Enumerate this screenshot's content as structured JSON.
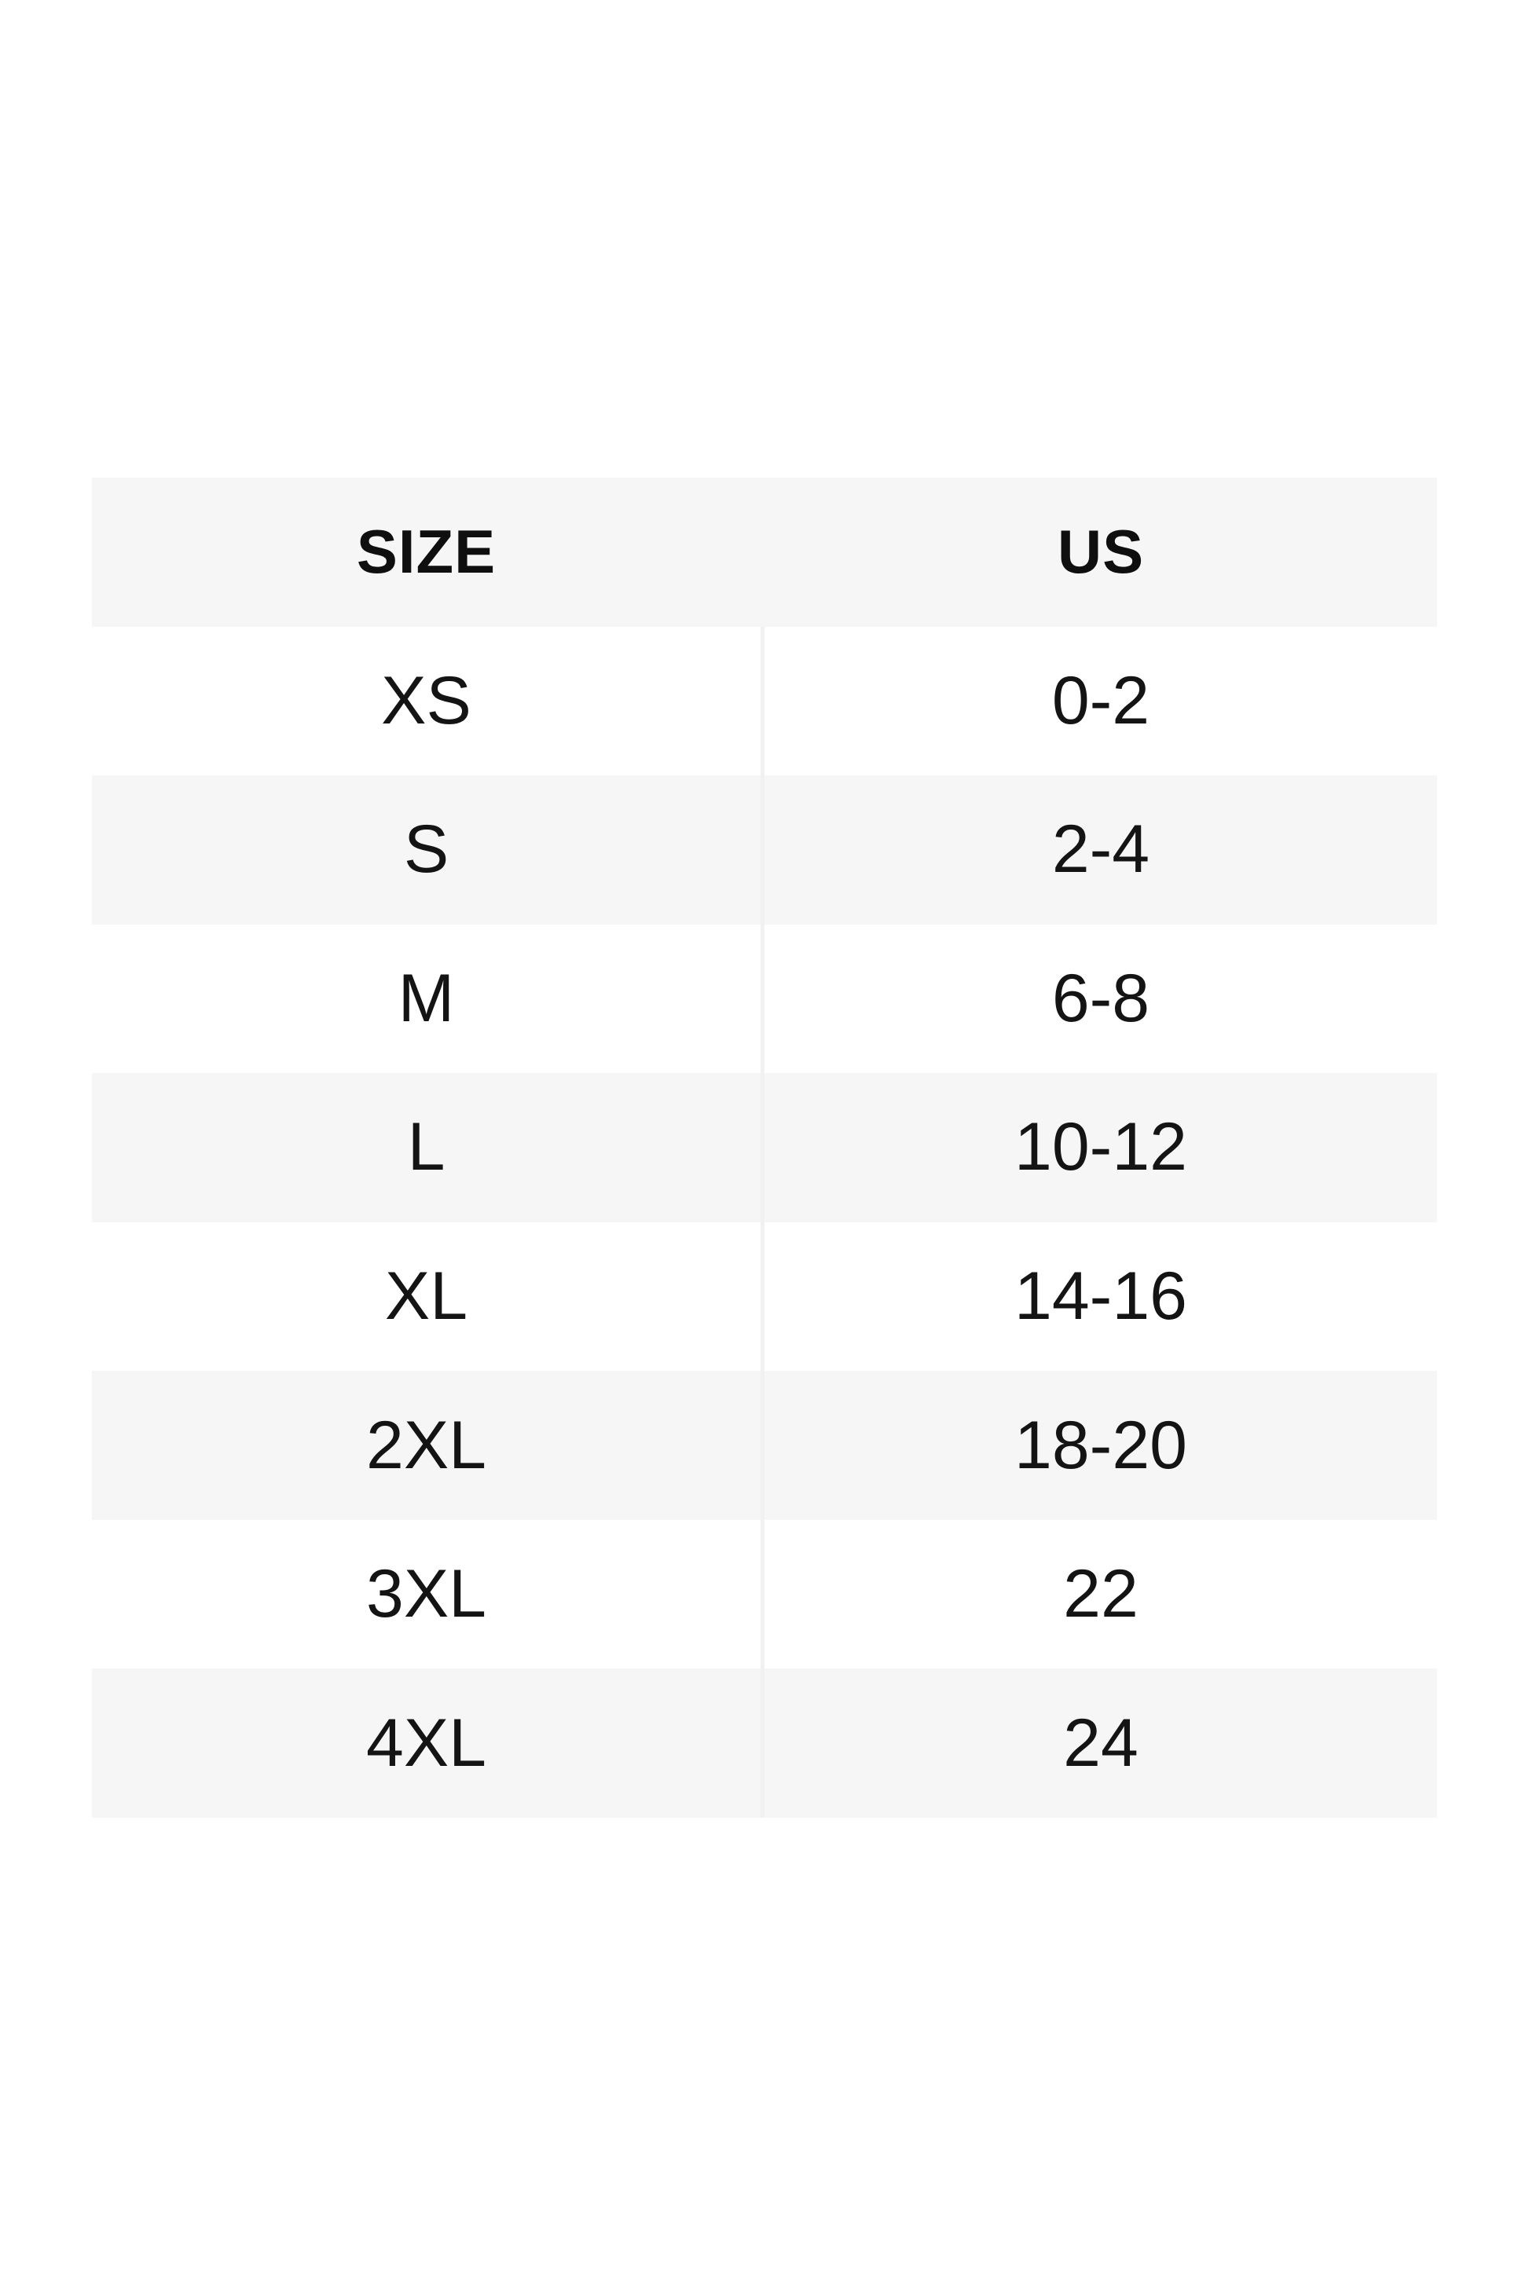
{
  "table": {
    "headers": [
      "SIZE",
      "US"
    ],
    "rows": [
      {
        "size": "XS",
        "us": "0-2"
      },
      {
        "size": "S",
        "us": "2-4"
      },
      {
        "size": "M",
        "us": "6-8"
      },
      {
        "size": "L",
        "us": "10-12"
      },
      {
        "size": "XL",
        "us": "14-16"
      },
      {
        "size": "2XL",
        "us": "18-20"
      },
      {
        "size": "3XL",
        "us": "22"
      },
      {
        "size": "4XL",
        "us": "24"
      }
    ]
  },
  "colors": {
    "background": "#ffffff",
    "row_stripe": "#f6f6f6",
    "column_divider": "#f1f1f1",
    "header_text": "#0f0f0f",
    "body_text": "#141414"
  }
}
